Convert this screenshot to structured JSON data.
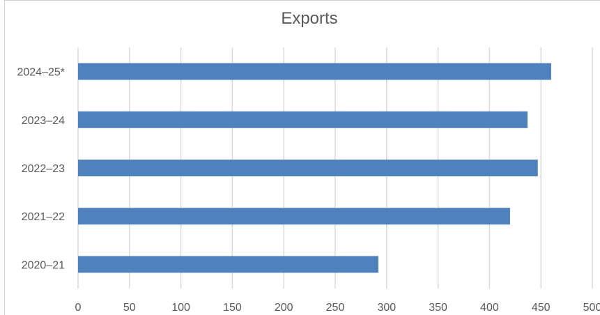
{
  "chart_data": {
    "type": "bar",
    "orientation": "horizontal",
    "title": "Exports",
    "xlabel": "",
    "ylabel": "",
    "categories": [
      "2024–25*",
      "2023–24",
      "2022–23",
      "2021–22",
      "2020–21"
    ],
    "values": [
      460,
      437,
      447,
      420,
      292
    ],
    "xlim": [
      0,
      500
    ],
    "xticks": [
      "0",
      "50",
      "100",
      "150",
      "200",
      "250",
      "300",
      "350",
      "400",
      "450",
      "500"
    ],
    "grid": "vertical",
    "legend": "none",
    "bar_color": "#4f81bd",
    "grid_color": "#d9d9d9"
  }
}
